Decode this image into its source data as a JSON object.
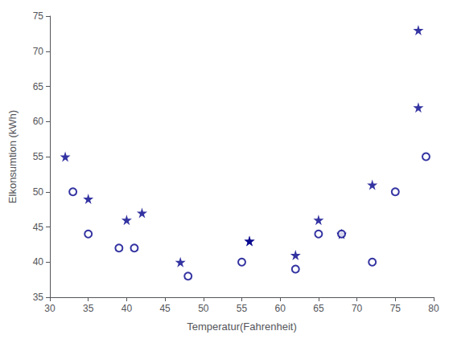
{
  "chart_data": {
    "type": "scatter",
    "xlabel": "Temperatur(Fahrenheit)",
    "ylabel": "Elkonsumtion (kWh)",
    "series": [
      {
        "x": [
          32,
          35,
          40,
          42,
          47,
          56,
          56,
          62,
          65,
          68,
          72,
          78,
          78
        ],
        "values": [
          55,
          49,
          46,
          47,
          40,
          43,
          43,
          41,
          46,
          44,
          51,
          62,
          73
        ],
        "color": "#00008B",
        "marker": "star"
      },
      {
        "x": [
          33,
          35,
          39,
          41,
          48,
          55,
          62,
          65,
          68,
          72,
          75,
          79
        ],
        "values": [
          50,
          44,
          42,
          42,
          38,
          40,
          39,
          44,
          44,
          40,
          50,
          55
        ],
        "color": "#00008B",
        "marker": "open_circle"
      }
    ],
    "xlim": [
      30,
      80
    ],
    "ylim": [
      35,
      75
    ],
    "xticks": [
      30,
      35,
      40,
      45,
      50,
      55,
      60,
      65,
      70,
      75,
      80
    ],
    "yticks": [
      35,
      40,
      45,
      50,
      55,
      60,
      65,
      70,
      75
    ],
    "grid": false
  }
}
